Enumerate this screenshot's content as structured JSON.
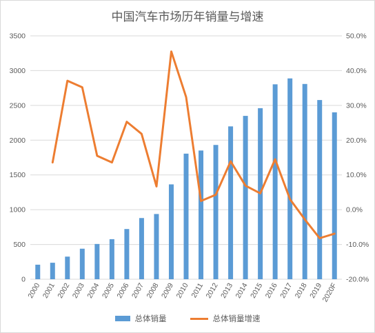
{
  "chart_data": {
    "type": "bar",
    "title": "中国汽车市场历年销量与增速",
    "categories": [
      "2000",
      "2001",
      "2002",
      "2003",
      "2004",
      "2005",
      "2006",
      "2007",
      "2008",
      "2009",
      "2010",
      "2011",
      "2012",
      "2013",
      "2014",
      "2015",
      "2016",
      "2017",
      "2018",
      "2019",
      "2020F"
    ],
    "series": [
      {
        "name": "总体销量",
        "type": "bar",
        "axis": "left",
        "values": [
          209,
          237,
          325,
          439,
          507,
          576,
          722,
          880,
          938,
          1364,
          1806,
          1851,
          1931,
          2198,
          2349,
          2460,
          2803,
          2888,
          2808,
          2577,
          2400
        ],
        "color": "#5b9bd5"
      },
      {
        "name": "总体销量增速",
        "type": "line",
        "axis": "right",
        "values": [
          null,
          13.6,
          37.1,
          35.2,
          15.5,
          13.6,
          25.3,
          21.8,
          6.7,
          45.5,
          32.4,
          2.5,
          4.3,
          13.9,
          6.9,
          4.7,
          14.5,
          3.0,
          -2.8,
          -8.2,
          -6.9
        ],
        "color": "#ed7d31"
      }
    ],
    "y_left": {
      "lim": [
        0,
        3500
      ],
      "ticks": [
        "0",
        "500",
        "1000",
        "1500",
        "2000",
        "2500",
        "3000",
        "3500"
      ]
    },
    "y_right": {
      "lim": [
        -20,
        50
      ],
      "ticks": [
        "-20.0%",
        "-10.0%",
        "0.0%",
        "10.0%",
        "20.0%",
        "30.0%",
        "40.0%",
        "50.0%"
      ]
    },
    "grid": true,
    "legend_position": "bottom"
  }
}
